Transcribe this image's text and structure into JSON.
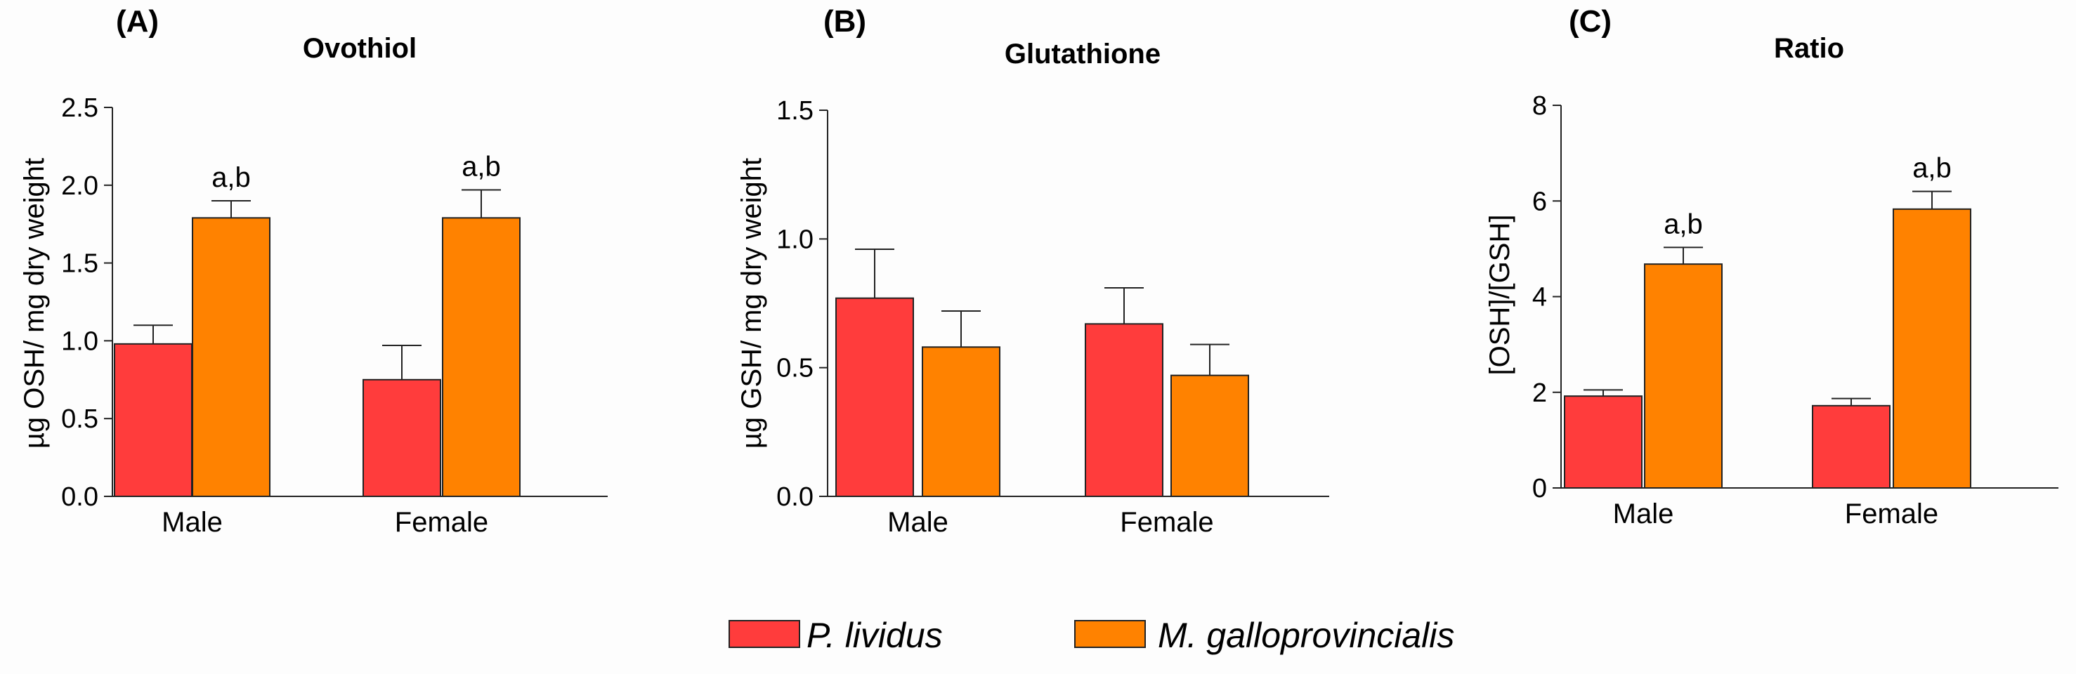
{
  "colors": {
    "p_lividus": "#ff3c3c",
    "m_galloprovincialis": "#ff8200",
    "axis": "#222222"
  },
  "legend": {
    "series1": "P. lividus",
    "series2": "M. galloprovincialis"
  },
  "chart_data": [
    {
      "type": "bar",
      "panel_label": "(A)",
      "title": "Ovothiol",
      "ylabel": "µg OSH/ mg dry weight",
      "xlabel": "",
      "ylim": [
        0,
        2.5
      ],
      "yticks": [
        "0.0",
        "0.5",
        "1.0",
        "1.5",
        "2.0",
        "2.5"
      ],
      "categories": [
        "Male",
        "Female"
      ],
      "series": [
        {
          "name": "P. lividus",
          "values": [
            0.98,
            0.75
          ],
          "errors": [
            0.12,
            0.22
          ]
        },
        {
          "name": "M. galloprovincialis",
          "values": [
            1.79,
            1.79
          ],
          "errors": [
            0.11,
            0.18
          ]
        }
      ],
      "annotations": [
        {
          "category": "Male",
          "series": "M. galloprovincialis",
          "text": "a,b"
        },
        {
          "category": "Female",
          "series": "M. galloprovincialis",
          "text": "a,b"
        }
      ]
    },
    {
      "type": "bar",
      "panel_label": "(B)",
      "title": "Glutathione",
      "ylabel": "µg GSH/ mg dry weight",
      "xlabel": "",
      "ylim": [
        0,
        1.5
      ],
      "yticks": [
        "0.0",
        "0.5",
        "1.0",
        "1.5"
      ],
      "categories": [
        "Male",
        "Female"
      ],
      "series": [
        {
          "name": "P. lividus",
          "values": [
            0.77,
            0.67
          ],
          "errors": [
            0.19,
            0.14
          ]
        },
        {
          "name": "M. galloprovincialis",
          "values": [
            0.58,
            0.47
          ],
          "errors": [
            0.14,
            0.12
          ]
        }
      ],
      "annotations": []
    },
    {
      "type": "bar",
      "panel_label": "(C)",
      "title": "Ratio",
      "ylabel": "[OSH]/[GSH]",
      "xlabel": "",
      "ylim": [
        0,
        8
      ],
      "yticks": [
        "0",
        "2",
        "4",
        "6",
        "8"
      ],
      "categories": [
        "Male",
        "Female"
      ],
      "series": [
        {
          "name": "P. lividus",
          "values": [
            1.92,
            1.72
          ],
          "errors": [
            0.13,
            0.15
          ]
        },
        {
          "name": "M. galloprovincialis",
          "values": [
            4.68,
            5.83
          ],
          "errors": [
            0.35,
            0.37
          ]
        }
      ],
      "annotations": [
        {
          "category": "Male",
          "series": "M. galloprovincialis",
          "text": "a,b"
        },
        {
          "category": "Female",
          "series": "M. galloprovincialis",
          "text": "a,b"
        }
      ]
    }
  ]
}
